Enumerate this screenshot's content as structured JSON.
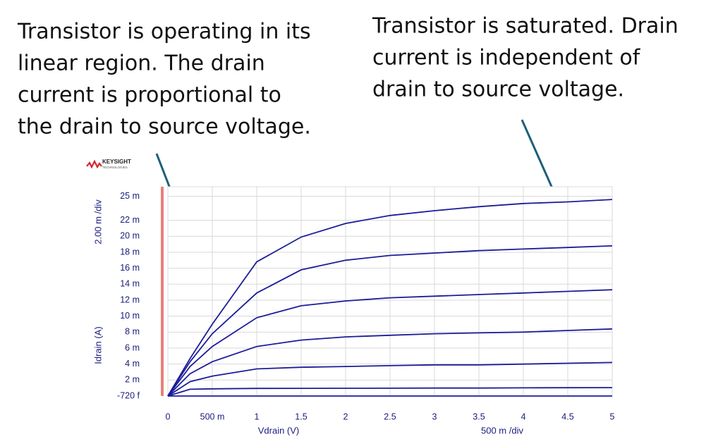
{
  "chart_data": {
    "type": "line",
    "logo": "KEYSIGHT",
    "logo_sub": "TECHNOLOGIES",
    "annotations": [
      [
        "Transistor is operating in its",
        "linear region. The drain",
        "current is proportional to",
        "the drain to source voltage."
      ],
      [
        "Transistor is saturated. Drain",
        "current is independent of",
        "drain to source voltage."
      ]
    ],
    "x_label": "Vdrain (V)",
    "x_scale_label": "500 m /div",
    "y_label": "Idrain (A)",
    "y_scale_label": "2.00 m /div",
    "xlim": [
      0,
      5
    ],
    "xticks": [
      0,
      {
        "value": 0.5,
        "label": "500 m"
      },
      1,
      1.5,
      2,
      2.5,
      3,
      3.5,
      4,
      4.5,
      5
    ],
    "ylim": [
      -7.2e-13,
      0.0262
    ],
    "yticks": [
      {
        "value": -7.2e-13,
        "label": "-720 f"
      },
      {
        "value": 0.002,
        "label": "2 m"
      },
      {
        "value": 0.004,
        "label": "4 m"
      },
      {
        "value": 0.006,
        "label": "6 m"
      },
      {
        "value": 0.008,
        "label": "8 m"
      },
      {
        "value": 0.01,
        "label": "10 m"
      },
      {
        "value": 0.012,
        "label": "12 m"
      },
      {
        "value": 0.014,
        "label": "14 m"
      },
      {
        "value": 0.016,
        "label": "16 m"
      },
      {
        "value": 0.018,
        "label": "18 m"
      },
      {
        "value": 0.02,
        "label": "20 m"
      },
      {
        "value": 0.022,
        "label": "22 m"
      },
      {
        "value": 0.025,
        "label": "25 m"
      }
    ],
    "grid": true,
    "x": [
      0,
      0.25,
      0.5,
      1,
      1.5,
      2,
      2.5,
      3,
      3.5,
      4,
      4.5,
      5
    ],
    "series": [
      {
        "color": "#1c1c9a",
        "values": [
          0,
          0.0047,
          0.009,
          0.0168,
          0.0199,
          0.0216,
          0.0226,
          0.0232,
          0.0237,
          0.0241,
          0.0243,
          0.0246
        ]
      },
      {
        "color": "#1c1c9a",
        "values": [
          0,
          0.0043,
          0.0078,
          0.0129,
          0.0158,
          0.017,
          0.0176,
          0.0179,
          0.0182,
          0.0184,
          0.0186,
          0.0188
        ]
      },
      {
        "color": "#1c1c9a",
        "values": [
          0,
          0.0037,
          0.0062,
          0.0098,
          0.0113,
          0.0119,
          0.0123,
          0.0125,
          0.0127,
          0.0129,
          0.0131,
          0.0133
        ]
      },
      {
        "color": "#1c1c9a",
        "values": [
          0,
          0.0028,
          0.0043,
          0.0062,
          0.007,
          0.0074,
          0.0076,
          0.0078,
          0.0079,
          0.008,
          0.0082,
          0.0084
        ]
      },
      {
        "color": "#1c1c9a",
        "values": [
          0,
          0.0018,
          0.0025,
          0.0034,
          0.0036,
          0.0037,
          0.0038,
          0.0039,
          0.0039,
          0.004,
          0.0041,
          0.0042
        ]
      },
      {
        "color": "#1c1c9a",
        "values": [
          0,
          0.00085,
          0.0009,
          0.00095,
          0.00096,
          0.00097,
          0.00098,
          0.001,
          0.001,
          0.00102,
          0.00104,
          0.00105
        ]
      },
      {
        "color": "#1c1c9a",
        "values": [
          0,
          0,
          0,
          0,
          0,
          0,
          0,
          0,
          0,
          0,
          0,
          0
        ]
      }
    ]
  }
}
